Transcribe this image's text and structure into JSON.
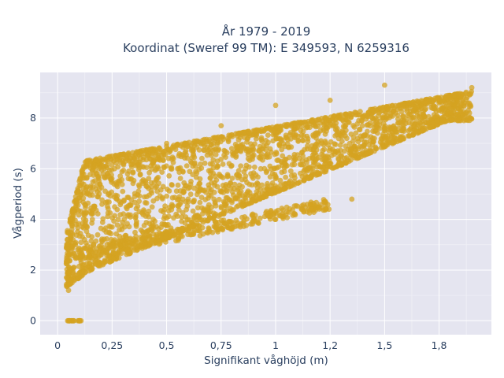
{
  "chart_data": {
    "type": "scatter",
    "title_line1": "År 1979 - 2019",
    "title_line2": "Koordinat (Sweref 99 TM): E 349593, N 6259316",
    "xlabel": "Signifikant våghöjd (m)",
    "ylabel": "Vågperiod (s)",
    "xlim": [
      -0.08,
      1.99
    ],
    "ylim": [
      -0.55,
      9.8
    ],
    "xticks": [
      0,
      0.25,
      0.5,
      0.75,
      1,
      1.25,
      1.5,
      1.75
    ],
    "xtick_labels": [
      "0",
      "0,25",
      "0,5",
      "0,75",
      "1",
      "1,2",
      "1,5",
      "1,8"
    ],
    "yticks": [
      0,
      2,
      4,
      6,
      8
    ],
    "ytick_labels": [
      "0",
      "2",
      "4",
      "6",
      "8"
    ],
    "grid": true,
    "marker_color": "#d4a321",
    "background_color": "#e5e5f0",
    "clusters": [
      {
        "name": "main-band",
        "x_range": [
          0.04,
          1.9
        ],
        "y_lower": [
          1.1,
          7.9
        ],
        "y_upper": [
          6.0,
          9.1
        ]
      },
      {
        "name": "low-period-branch",
        "x_range": [
          0.1,
          1.25
        ],
        "y_range": [
          2.4,
          4.6
        ]
      },
      {
        "name": "zero-period-points",
        "x_range": [
          0.04,
          0.11
        ],
        "y": 0
      }
    ],
    "sample_points": [
      [
        0.05,
        1.2
      ],
      [
        0.1,
        2.5
      ],
      [
        0.1,
        5.5
      ],
      [
        0.25,
        3.0
      ],
      [
        0.25,
        6.5
      ],
      [
        0.5,
        3.5
      ],
      [
        0.5,
        7.0
      ],
      [
        0.75,
        4.5
      ],
      [
        0.75,
        7.7
      ],
      [
        1.0,
        5.7
      ],
      [
        1.0,
        8.5
      ],
      [
        1.25,
        6.8
      ],
      [
        1.25,
        8.7
      ],
      [
        1.5,
        7.6
      ],
      [
        1.5,
        9.3
      ],
      [
        1.75,
        8.3
      ],
      [
        1.9,
        9.2
      ],
      [
        1.0,
        4.0
      ],
      [
        1.2,
        4.5
      ],
      [
        1.35,
        4.8
      ],
      [
        0.05,
        0.0
      ],
      [
        0.1,
        0.0
      ]
    ]
  }
}
